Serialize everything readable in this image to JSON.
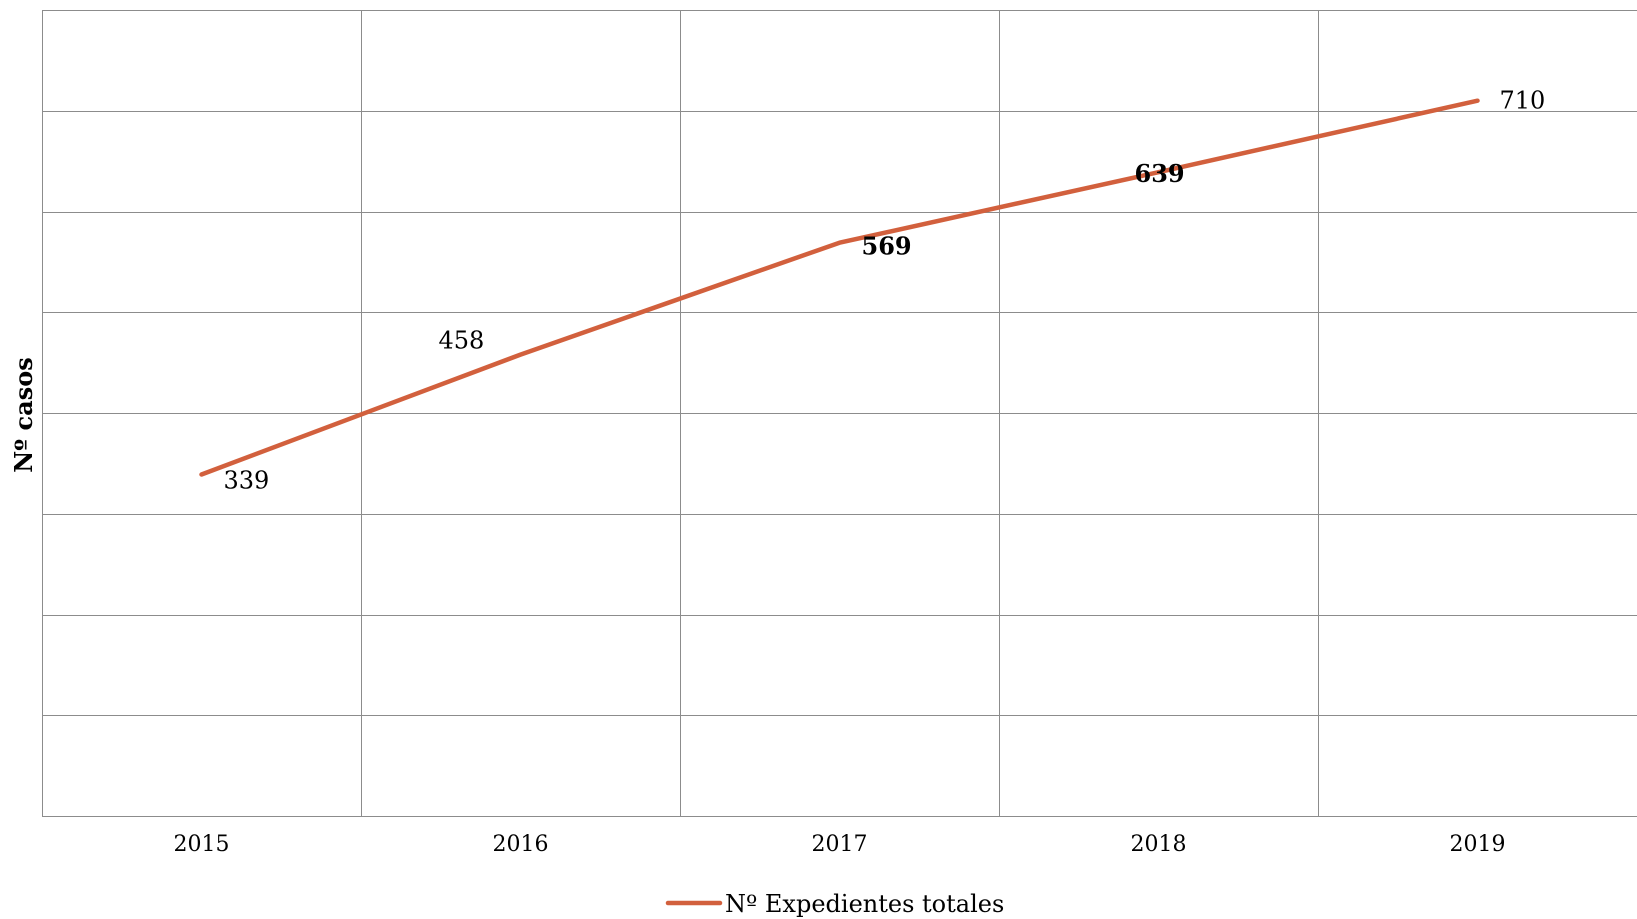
{
  "chart_data": {
    "type": "line",
    "title": "",
    "xlabel": "",
    "ylabel": "Nº casos",
    "categories": [
      "2015",
      "2016",
      "2017",
      "2018",
      "2019"
    ],
    "series": [
      {
        "name": "Nº Expedientes totales",
        "color": "#d2603d",
        "values": [
          339,
          458,
          569,
          639,
          710
        ],
        "labels": [
          "339",
          "458",
          "569",
          "639",
          "710"
        ],
        "bold_labels": [
          false,
          false,
          true,
          true,
          false
        ]
      }
    ],
    "ylim": [
      0,
      800
    ],
    "y_gridlines": 8,
    "grid": true,
    "y_tick_labels_shown": false,
    "legend": "bottom-center"
  }
}
